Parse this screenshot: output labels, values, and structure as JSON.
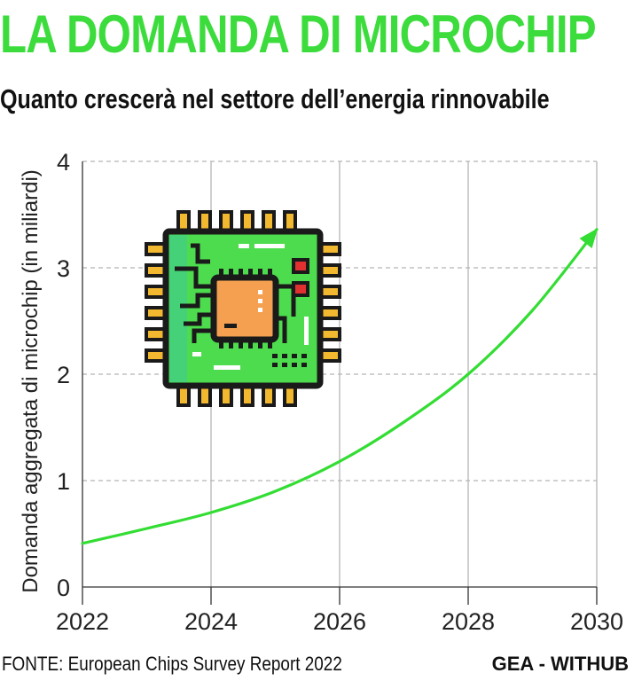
{
  "colors": {
    "title": "#3ddc3d",
    "line": "#33dd33",
    "grid": "#b5b5b5",
    "axis": "#333333",
    "chip_board": "#4ddc4d",
    "chip_core": "#f4a050",
    "chip_pins": "#f2b830",
    "chip_outline": "#1a1a1a"
  },
  "source": "FONTE: European Chips Survey Report 2022",
  "credit": "GEA - WITHUB",
  "icons": {
    "chip": "microchip-icon",
    "arrow": "arrow-head-icon"
  },
  "chart_data": {
    "type": "line",
    "title": "LA DOMANDA DI MICROCHIP",
    "subtitle": "Quanto crescerà nel settore dell’energia rinnovabile",
    "xlabel": "",
    "ylabel": "Domanda aggregata di microchip (in miliardi)",
    "x_ticks": [
      "2022",
      "2024",
      "2026",
      "2028",
      "2030"
    ],
    "y_ticks": [
      "0",
      "1",
      "2",
      "3",
      "4"
    ],
    "xlim": [
      2022,
      2030
    ],
    "ylim": [
      0,
      4
    ],
    "grid": true,
    "series": [
      {
        "x": [
          2022,
          2023,
          2024,
          2025,
          2026,
          2027,
          2028,
          2029,
          2030
        ],
        "y": [
          0.41,
          0.55,
          0.7,
          0.9,
          1.18,
          1.55,
          2.0,
          2.6,
          3.36
        ]
      }
    ]
  }
}
